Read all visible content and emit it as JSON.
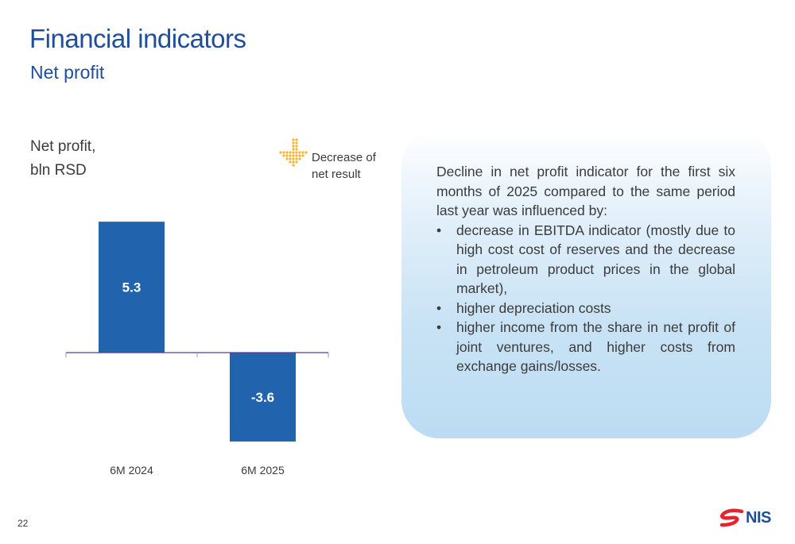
{
  "header": {
    "title": "Financial indicators",
    "subtitle": "Net profit"
  },
  "chart_label_lines": [
    "Net profit,",
    "bln RSD"
  ],
  "legend": {
    "icon": "down-arrow-icon",
    "color": "#f5b335",
    "lines": [
      "Decrease of",
      "net result"
    ]
  },
  "chart_data": {
    "type": "bar",
    "categories": [
      "6M 2024",
      "6M 2025"
    ],
    "values": [
      5.3,
      -3.6
    ],
    "value_labels": [
      "5.3",
      "-3.6"
    ],
    "title": "Net profit, bln RSD",
    "xlabel": "",
    "ylabel": "",
    "grid": false,
    "bar_color": "#2164ad",
    "axis_color": "#5b3b8c",
    "label_color": "#ffffff"
  },
  "info_box": {
    "intro": "Decline in net profit indicator for the first six months of 2025 compared to the same period last year was influenced by:",
    "bullets": [
      "decrease in EBITDA indicator (mostly due to high cost cost of reserves and the decrease in petroleum product prices in the global market),",
      "higher depreciation costs",
      "higher income from the share in net profit of joint ventures, and higher costs from exchange gains/losses."
    ],
    "bullet_glyph": "•"
  },
  "footer": {
    "page_number": "22",
    "logo_text": "NIS",
    "logo_icon": "nis-logo-icon",
    "logo_colors": [
      "#e3262d",
      "#1f4e9c"
    ]
  }
}
